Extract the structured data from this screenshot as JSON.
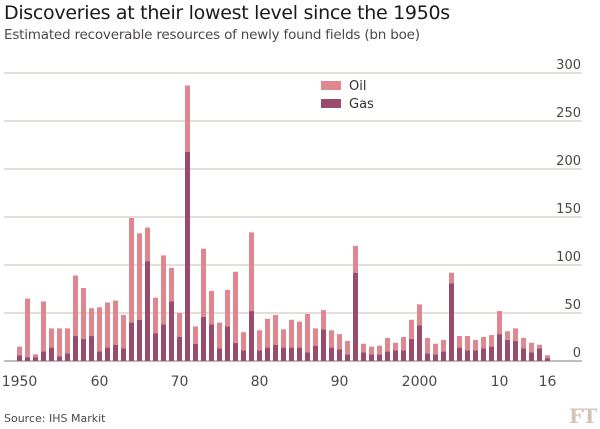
{
  "header": {
    "title": "Discoveries at their lowest level since the 1950s",
    "subtitle": "Estimated recoverable resources of newly found fields (bn boe)"
  },
  "footer": {
    "source": "Source: IHS Markit",
    "logo_text": "FT"
  },
  "colors": {
    "oil": "#e0868f",
    "gas": "#9a4a6b",
    "grid": "#d9d3cc",
    "baseline": "#9d9590"
  },
  "chart_data": {
    "type": "bar",
    "stacked": true,
    "title": "Discoveries at their lowest level since the 1950s",
    "subtitle": "Estimated recoverable resources of newly found fields (bn boe)",
    "xlabel": "",
    "ylabel": "",
    "ylim": [
      0,
      300
    ],
    "yticks": [
      0,
      50,
      100,
      150,
      200,
      250,
      300
    ],
    "ytick_labels": [
      "0",
      "50",
      "100",
      "150",
      "200",
      "250",
      "300"
    ],
    "y_axis_side": "right",
    "grid": true,
    "legend_position": "top-center",
    "xtick_values": [
      1950,
      1960,
      1970,
      1980,
      1990,
      2000,
      2010,
      2016
    ],
    "xtick_labels": [
      "1950",
      "60",
      "70",
      "80",
      "90",
      "2000",
      "10",
      "16"
    ],
    "categories": [
      1950,
      1951,
      1952,
      1953,
      1954,
      1955,
      1956,
      1957,
      1958,
      1959,
      1960,
      1961,
      1962,
      1963,
      1964,
      1965,
      1966,
      1967,
      1968,
      1969,
      1970,
      1971,
      1972,
      1973,
      1974,
      1975,
      1976,
      1977,
      1978,
      1979,
      1980,
      1981,
      1982,
      1983,
      1984,
      1985,
      1986,
      1987,
      1988,
      1989,
      1990,
      1991,
      1992,
      1993,
      1994,
      1995,
      1996,
      1997,
      1998,
      1999,
      2000,
      2001,
      2002,
      2003,
      2004,
      2005,
      2006,
      2007,
      2008,
      2009,
      2010,
      2011,
      2012,
      2013,
      2014,
      2015,
      2016
    ],
    "series": [
      {
        "name": "Gas",
        "values": [
          6,
          4,
          4,
          10,
          14,
          5,
          8,
          26,
          23,
          26,
          10,
          14,
          17,
          13,
          40,
          43,
          104,
          29,
          38,
          62,
          25,
          218,
          18,
          46,
          38,
          13,
          36,
          19,
          11,
          52,
          11,
          14,
          17,
          14,
          14,
          14,
          9,
          16,
          33,
          14,
          12,
          7,
          92,
          9,
          7,
          7,
          10,
          11,
          11,
          23,
          37,
          8,
          7,
          10,
          81,
          14,
          11,
          11,
          13,
          15,
          28,
          22,
          21,
          13,
          9,
          13,
          3
        ]
      },
      {
        "name": "Oil",
        "values": [
          9,
          61,
          3,
          52,
          20,
          29,
          26,
          63,
          53,
          29,
          46,
          47,
          46,
          35,
          109,
          90,
          35,
          37,
          72,
          35,
          25,
          69,
          18,
          71,
          35,
          27,
          38,
          74,
          19,
          82,
          21,
          30,
          31,
          19,
          29,
          27,
          40,
          18,
          20,
          18,
          16,
          14,
          28,
          9,
          8,
          9,
          14,
          8,
          14,
          20,
          22,
          16,
          11,
          12,
          11,
          12,
          15,
          11,
          12,
          12,
          24,
          9,
          13,
          11,
          10,
          4,
          3
        ]
      }
    ],
    "totals": [
      15,
      65,
      7,
      62,
      34,
      34,
      34,
      89,
      76,
      55,
      56,
      61,
      63,
      48,
      149,
      133,
      139,
      66,
      110,
      97,
      50,
      287,
      36,
      117,
      73,
      40,
      74,
      93,
      30,
      134,
      32,
      44,
      48,
      33,
      43,
      41,
      49,
      34,
      53,
      32,
      28,
      21,
      120,
      18,
      15,
      16,
      24,
      19,
      25,
      43,
      59,
      24,
      18,
      22,
      92,
      26,
      26,
      22,
      25,
      27,
      52,
      31,
      34,
      24,
      19,
      17,
      6
    ]
  }
}
